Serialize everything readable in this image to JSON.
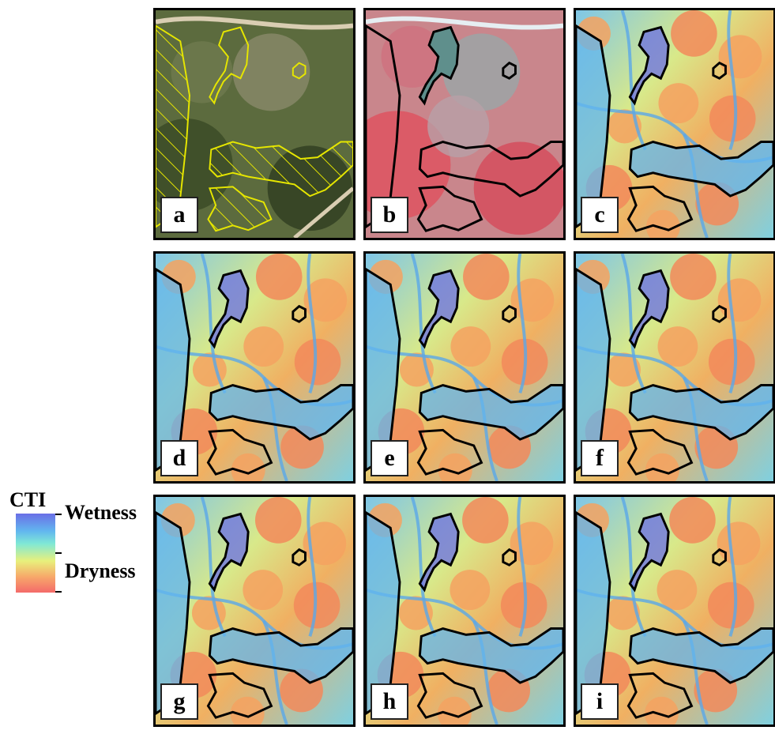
{
  "legend": {
    "title": "CTI",
    "high_label": "Wetness",
    "low_label": "Dryness"
  },
  "panels": [
    {
      "label": "a",
      "type": "natural-color-aerial"
    },
    {
      "label": "b",
      "type": "false-color-infrared"
    },
    {
      "label": "c",
      "type": "cti"
    },
    {
      "label": "d",
      "type": "cti"
    },
    {
      "label": "e",
      "type": "cti"
    },
    {
      "label": "f",
      "type": "cti"
    },
    {
      "label": "g",
      "type": "cti"
    },
    {
      "label": "h",
      "type": "cti"
    },
    {
      "label": "i",
      "type": "cti"
    }
  ],
  "colors": {
    "wet": "#6a6fe6",
    "mid_wet": "#62b6ef",
    "mid": "#7fe8d6",
    "mid_dry": "#e8f07c",
    "dry": "#f46a6a",
    "wetland_outline_a": "#e6e600",
    "wetland_outline": "#000000"
  }
}
